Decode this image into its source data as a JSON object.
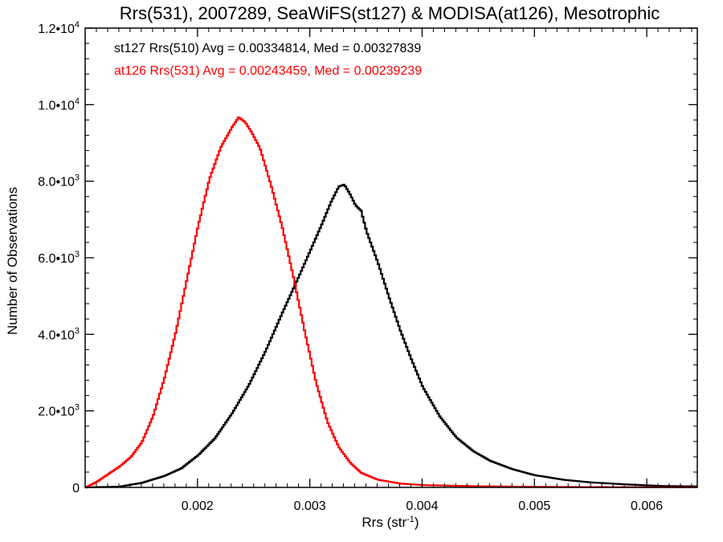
{
  "chart_data": {
    "type": "line",
    "style": "histogram-step",
    "title": "Rrs(531), 2007289, SeaWiFS(st127) & MODISA(at126), Mesotrophic",
    "xlabel": "Rrs (str",
    "xlabel_sup": "-1",
    "xlabel_close": ")",
    "ylabel": "Number of Observations",
    "xlim": [
      0.001,
      0.00645
    ],
    "ylim": [
      0,
      12000
    ],
    "xticks": [
      {
        "value": 0.002,
        "label": "0.002"
      },
      {
        "value": 0.003,
        "label": "0.003"
      },
      {
        "value": 0.004,
        "label": "0.004"
      },
      {
        "value": 0.005,
        "label": "0.005"
      },
      {
        "value": 0.006,
        "label": "0.006"
      }
    ],
    "yticks": [
      {
        "value": 0,
        "label": "0",
        "sup": ""
      },
      {
        "value": 2000,
        "label": "2.0•10",
        "sup": "3"
      },
      {
        "value": 4000,
        "label": "4.0•10",
        "sup": "3"
      },
      {
        "value": 6000,
        "label": "6.0•10",
        "sup": "3"
      },
      {
        "value": 8000,
        "label": "8.0•10",
        "sup": "3"
      },
      {
        "value": 10000,
        "label": "1.0•10",
        "sup": "4"
      },
      {
        "value": 12000,
        "label": "1.2•10",
        "sup": "4"
      }
    ],
    "legend_placement": "top-left",
    "grid": false,
    "series": [
      {
        "label": "st127 Rrs(510) Avg = 0.00334814, Med = 0.00327839",
        "color": "#000000",
        "points": [
          [
            0.001,
            0
          ],
          [
            0.0013,
            20
          ],
          [
            0.0015,
            120
          ],
          [
            0.0017,
            300
          ],
          [
            0.00185,
            500
          ],
          [
            0.002,
            850
          ],
          [
            0.00215,
            1300
          ],
          [
            0.0023,
            1950
          ],
          [
            0.00245,
            2700
          ],
          [
            0.0026,
            3600
          ],
          [
            0.00275,
            4600
          ],
          [
            0.0029,
            5550
          ],
          [
            0.003,
            6200
          ],
          [
            0.0031,
            6850
          ],
          [
            0.00318,
            7400
          ],
          [
            0.00325,
            7800
          ],
          [
            0.0033,
            7850
          ],
          [
            0.00335,
            7600
          ],
          [
            0.0034,
            7300
          ],
          [
            0.00345,
            7150
          ],
          [
            0.0035,
            6600
          ],
          [
            0.0036,
            5800
          ],
          [
            0.0037,
            4900
          ],
          [
            0.0038,
            4050
          ],
          [
            0.0039,
            3300
          ],
          [
            0.004,
            2600
          ],
          [
            0.00415,
            1850
          ],
          [
            0.0043,
            1300
          ],
          [
            0.00445,
            950
          ],
          [
            0.0046,
            700
          ],
          [
            0.0048,
            480
          ],
          [
            0.005,
            320
          ],
          [
            0.00525,
            200
          ],
          [
            0.0055,
            130
          ],
          [
            0.0058,
            80
          ],
          [
            0.0061,
            40
          ],
          [
            0.00645,
            25
          ]
        ]
      },
      {
        "label": "at126 Rrs(531) Avg = 0.00243459, Med = 0.00239239",
        "color": "#ff0000",
        "points": [
          [
            0.001,
            0
          ],
          [
            0.0011,
            150
          ],
          [
            0.0012,
            350
          ],
          [
            0.0013,
            550
          ],
          [
            0.0014,
            800
          ],
          [
            0.0015,
            1200
          ],
          [
            0.0016,
            1900
          ],
          [
            0.0017,
            2900
          ],
          [
            0.0018,
            4100
          ],
          [
            0.0019,
            5500
          ],
          [
            0.002,
            6900
          ],
          [
            0.0021,
            8100
          ],
          [
            0.0022,
            8900
          ],
          [
            0.0023,
            9400
          ],
          [
            0.00236,
            9650
          ],
          [
            0.00242,
            9500
          ],
          [
            0.00248,
            9200
          ],
          [
            0.00255,
            8800
          ],
          [
            0.00265,
            7800
          ],
          [
            0.00275,
            6700
          ],
          [
            0.00285,
            5400
          ],
          [
            0.00295,
            4000
          ],
          [
            0.00305,
            2700
          ],
          [
            0.00315,
            1700
          ],
          [
            0.00325,
            1050
          ],
          [
            0.00335,
            650
          ],
          [
            0.00345,
            380
          ],
          [
            0.0036,
            200
          ],
          [
            0.0038,
            100
          ],
          [
            0.004,
            60
          ],
          [
            0.0045,
            30
          ],
          [
            0.005,
            15
          ],
          [
            0.0055,
            8
          ],
          [
            0.00645,
            2
          ]
        ]
      }
    ]
  }
}
